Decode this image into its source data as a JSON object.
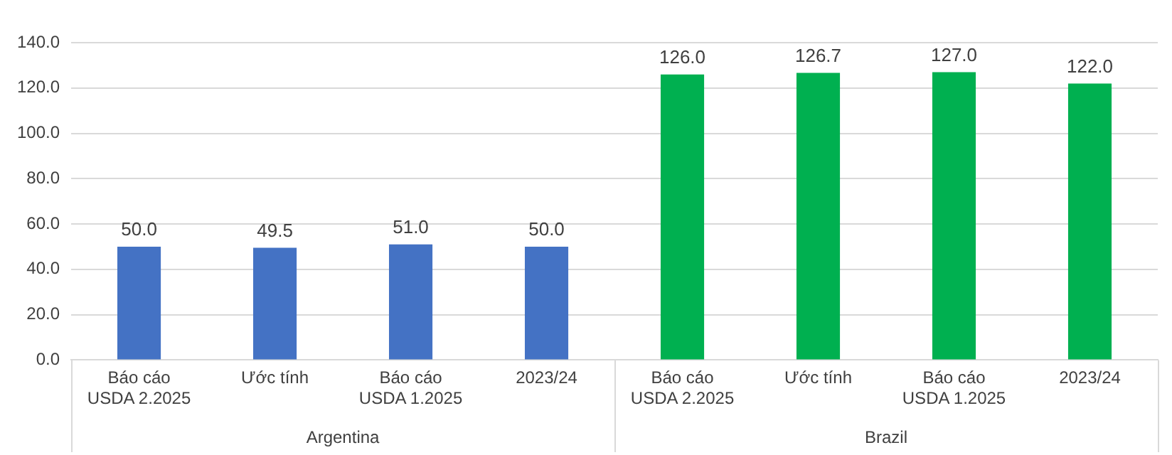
{
  "chart_data": {
    "type": "bar",
    "categories": [
      "Báo cáo USDA 2.2025",
      "Ước tính",
      "Báo cáo USDA 1.2025",
      "2023/24",
      "Báo cáo USDA 2.2025",
      "Ước tính",
      "Báo cáo USDA 1.2025",
      "2023/24"
    ],
    "series": [
      {
        "color": "#4472c4",
        "values": [
          50.0,
          49.5,
          51.0,
          50.0,
          null,
          null,
          null,
          null
        ],
        "value_labels": [
          "50.0",
          "49.5",
          "51.0",
          "50.0",
          null,
          null,
          null,
          null
        ]
      },
      {
        "color": "#00b050",
        "values": [
          null,
          null,
          null,
          null,
          126.0,
          126.7,
          127.0,
          122.0
        ],
        "value_labels": [
          null,
          null,
          null,
          null,
          "126.0",
          "126.7",
          "127.0",
          "122.0"
        ]
      }
    ],
    "ylim": [
      0,
      140
    ],
    "yticks": [
      {
        "value": 0,
        "label": "0.0"
      },
      {
        "value": 20,
        "label": "20.0"
      },
      {
        "value": 40,
        "label": "40.0"
      },
      {
        "value": 60,
        "label": "60.0"
      },
      {
        "value": 80,
        "label": "80.0"
      },
      {
        "value": 100,
        "label": "100.0"
      },
      {
        "value": 120,
        "label": "120.0"
      },
      {
        "value": 140,
        "label": "140.0"
      }
    ],
    "annotations": [
      "Argentina",
      "Brazil"
    ],
    "grid": "y",
    "legend": false
  }
}
